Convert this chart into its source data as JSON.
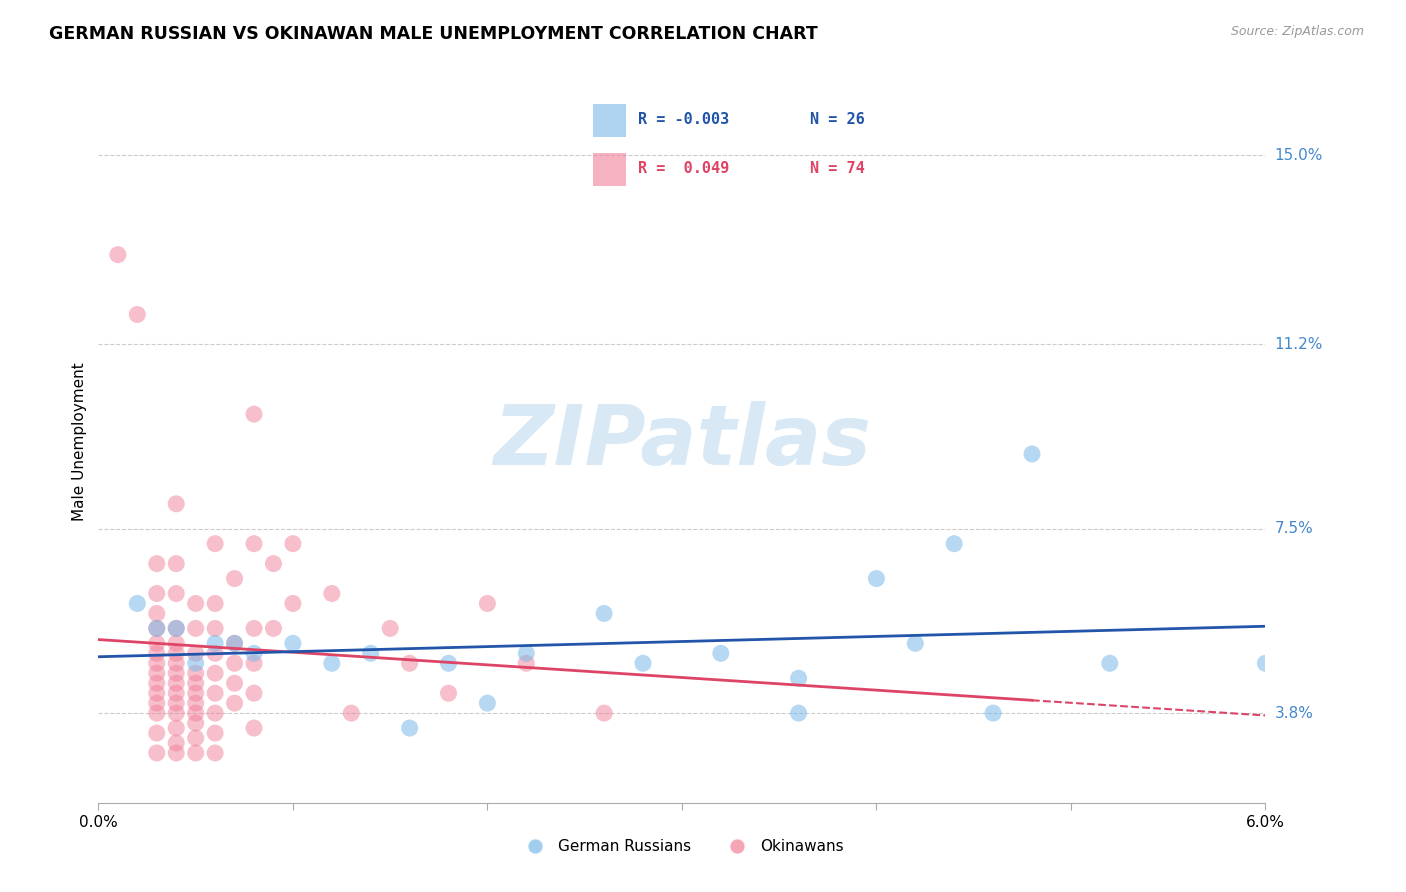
{
  "title": "GERMAN RUSSIAN VS OKINAWAN MALE UNEMPLOYMENT CORRELATION CHART",
  "source": "Source: ZipAtlas.com",
  "ylabel": "Male Unemployment",
  "x_min": 0.0,
  "x_max": 0.06,
  "y_min": 0.02,
  "y_max": 0.165,
  "y_ticks": [
    0.038,
    0.075,
    0.112,
    0.15
  ],
  "y_tick_labels": [
    "3.8%",
    "7.5%",
    "11.2%",
    "15.0%"
  ],
  "x_ticks": [
    0.0,
    0.01,
    0.02,
    0.03,
    0.04,
    0.05,
    0.06
  ],
  "x_tick_labels": [
    "0.0%",
    "",
    "",
    "",
    "",
    "",
    "6.0%"
  ],
  "legend_r_blue": "R = -0.003",
  "legend_n_blue": "N = 26",
  "legend_r_pink": "R =  0.049",
  "legend_n_pink": "N = 74",
  "blue_color": "#7ab8e8",
  "pink_color": "#f08098",
  "trend_blue_color": "#2255aa",
  "trend_pink_color": "#dd4466",
  "watermark_text": "ZIPatlas",
  "watermark_color": "#c8dff0",
  "background_color": "#ffffff",
  "grid_color": "#cccccc",
  "blue_line_intercept": 0.0488,
  "blue_line_slope": -0.05,
  "pink_line_intercept": 0.044,
  "pink_line_slope": 30.0,
  "blue_dots": [
    [
      0.002,
      0.06
    ],
    [
      0.003,
      0.055
    ],
    [
      0.004,
      0.055
    ],
    [
      0.005,
      0.048
    ],
    [
      0.006,
      0.052
    ],
    [
      0.007,
      0.052
    ],
    [
      0.008,
      0.05
    ],
    [
      0.01,
      0.052
    ],
    [
      0.012,
      0.048
    ],
    [
      0.014,
      0.05
    ],
    [
      0.016,
      0.035
    ],
    [
      0.018,
      0.048
    ],
    [
      0.02,
      0.04
    ],
    [
      0.022,
      0.05
    ],
    [
      0.026,
      0.058
    ],
    [
      0.028,
      0.048
    ],
    [
      0.032,
      0.05
    ],
    [
      0.036,
      0.045
    ],
    [
      0.04,
      0.065
    ],
    [
      0.042,
      0.052
    ],
    [
      0.044,
      0.072
    ],
    [
      0.046,
      0.038
    ],
    [
      0.048,
      0.09
    ],
    [
      0.052,
      0.048
    ],
    [
      0.036,
      0.038
    ],
    [
      0.06,
      0.048
    ]
  ],
  "pink_dots": [
    [
      0.001,
      0.13
    ],
    [
      0.002,
      0.118
    ],
    [
      0.003,
      0.068
    ],
    [
      0.003,
      0.062
    ],
    [
      0.003,
      0.058
    ],
    [
      0.003,
      0.055
    ],
    [
      0.003,
      0.052
    ],
    [
      0.003,
      0.05
    ],
    [
      0.003,
      0.048
    ],
    [
      0.003,
      0.046
    ],
    [
      0.003,
      0.044
    ],
    [
      0.003,
      0.042
    ],
    [
      0.003,
      0.04
    ],
    [
      0.003,
      0.038
    ],
    [
      0.003,
      0.034
    ],
    [
      0.003,
      0.03
    ],
    [
      0.004,
      0.08
    ],
    [
      0.004,
      0.068
    ],
    [
      0.004,
      0.062
    ],
    [
      0.004,
      0.055
    ],
    [
      0.004,
      0.052
    ],
    [
      0.004,
      0.05
    ],
    [
      0.004,
      0.048
    ],
    [
      0.004,
      0.046
    ],
    [
      0.004,
      0.044
    ],
    [
      0.004,
      0.042
    ],
    [
      0.004,
      0.04
    ],
    [
      0.004,
      0.038
    ],
    [
      0.004,
      0.035
    ],
    [
      0.004,
      0.032
    ],
    [
      0.004,
      0.03
    ],
    [
      0.005,
      0.06
    ],
    [
      0.005,
      0.055
    ],
    [
      0.005,
      0.05
    ],
    [
      0.005,
      0.046
    ],
    [
      0.005,
      0.044
    ],
    [
      0.005,
      0.042
    ],
    [
      0.005,
      0.04
    ],
    [
      0.005,
      0.038
    ],
    [
      0.005,
      0.036
    ],
    [
      0.005,
      0.033
    ],
    [
      0.005,
      0.03
    ],
    [
      0.006,
      0.072
    ],
    [
      0.006,
      0.06
    ],
    [
      0.006,
      0.055
    ],
    [
      0.006,
      0.05
    ],
    [
      0.006,
      0.046
    ],
    [
      0.006,
      0.042
    ],
    [
      0.006,
      0.038
    ],
    [
      0.006,
      0.034
    ],
    [
      0.006,
      0.03
    ],
    [
      0.007,
      0.065
    ],
    [
      0.007,
      0.052
    ],
    [
      0.007,
      0.048
    ],
    [
      0.007,
      0.044
    ],
    [
      0.007,
      0.04
    ],
    [
      0.008,
      0.098
    ],
    [
      0.008,
      0.072
    ],
    [
      0.008,
      0.055
    ],
    [
      0.008,
      0.048
    ],
    [
      0.008,
      0.042
    ],
    [
      0.008,
      0.035
    ],
    [
      0.009,
      0.068
    ],
    [
      0.009,
      0.055
    ],
    [
      0.01,
      0.072
    ],
    [
      0.01,
      0.06
    ],
    [
      0.012,
      0.062
    ],
    [
      0.013,
      0.038
    ],
    [
      0.015,
      0.055
    ],
    [
      0.016,
      0.048
    ],
    [
      0.018,
      0.042
    ],
    [
      0.02,
      0.06
    ],
    [
      0.022,
      0.048
    ],
    [
      0.026,
      0.038
    ]
  ]
}
